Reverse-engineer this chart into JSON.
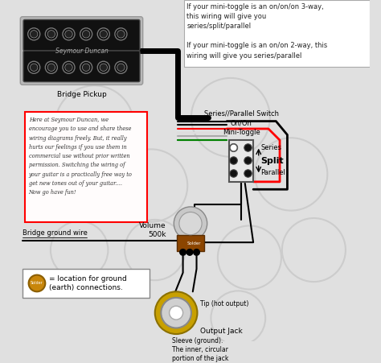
{
  "bg_color": "#e0e0e0",
  "title_top_text_line1": "If your mini-toggle is an on/on/on 3-way,",
  "title_top_text_line2": "this wiring will give you",
  "title_top_text_line3": "series/split/parallel",
  "title_top_text_line4": "",
  "title_top_text_line5": "If your mini-toggle is an on/on 2-way, this",
  "title_top_text_line6": "wiring will give you series/parallel",
  "red_box_text": "Here at Seymour Duncan, we\nencourage you to use and share these\nwiring diagrams freely. But, it really\nhurts our feelings if you use them in\ncommercial use without prior written\npermission. Switching the wiring of\nyour guitar is a practically free way to\nget new tones out of your guitar....\nNow go have fun!",
  "switch_label_line1": "Series//Parallel Switch",
  "switch_label_line2": "On/On",
  "switch_label_line3": "Mini-Toggle",
  "series_label": "Series",
  "split_label": "Split",
  "parallel_label": "Parallel",
  "volume_label_line1": "Volume",
  "volume_label_line2": "500k",
  "bridge_ground_label": "Bridge ground wire",
  "ground_legend_label": "= location for ground\n(earth) connections.",
  "tip_label": "Tip (hot output)",
  "sleeve_label": "Sleeve (ground).\nThe inner, circular\nportion of the jack",
  "output_jack_label": "Output Jack",
  "bridge_pickup_label": "Bridge Pickup",
  "seymour_duncan_label": "Seymour Duncan",
  "solder_label": "Solder"
}
